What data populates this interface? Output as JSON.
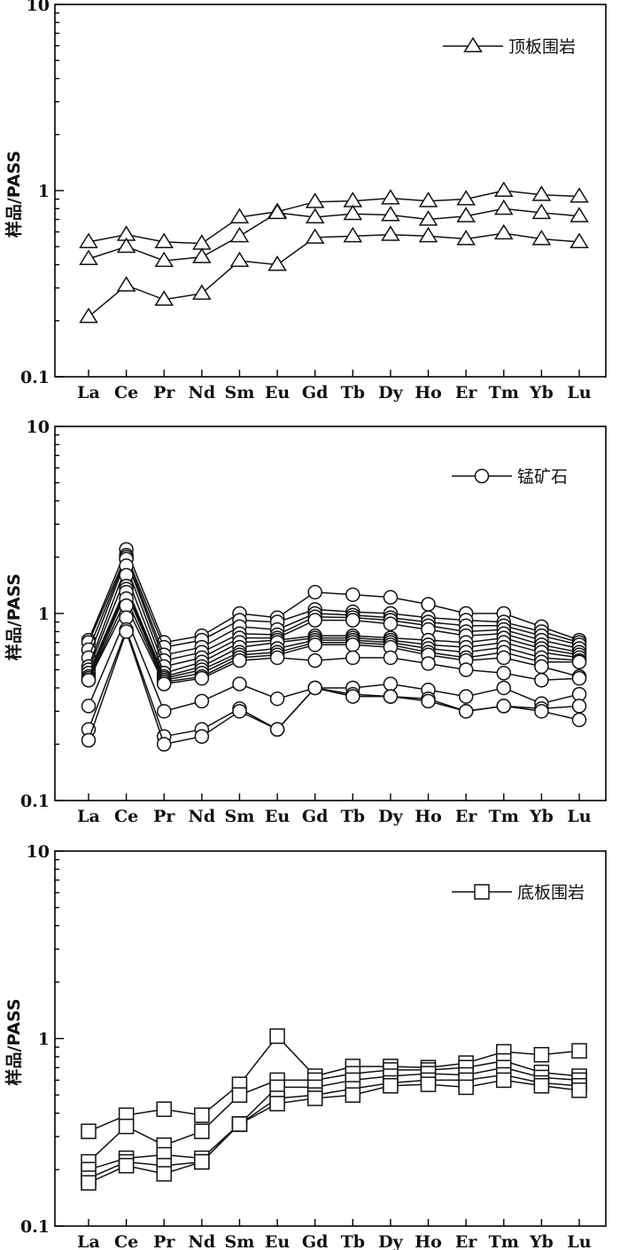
{
  "chart_data": [
    {
      "type": "line",
      "y_scale": "log",
      "ylim": [
        0.1,
        10
      ],
      "ylabel": "样品/PASS",
      "ytick_labels": [
        "0.1",
        "1",
        "10"
      ],
      "categories": [
        "La",
        "Ce",
        "Pr",
        "Nd",
        "Sm",
        "Eu",
        "Gd",
        "Tb",
        "Dy",
        "Ho",
        "Er",
        "Tm",
        "Yb",
        "Lu"
      ],
      "legend": {
        "label": "顶板围岩",
        "marker": "triangle",
        "position": "top-right"
      },
      "series": [
        {
          "values": [
            0.53,
            0.58,
            0.53,
            0.52,
            0.72,
            0.77,
            0.87,
            0.88,
            0.91,
            0.88,
            0.9,
            1.0,
            0.95,
            0.93
          ]
        },
        {
          "values": [
            0.43,
            0.5,
            0.42,
            0.44,
            0.57,
            0.76,
            0.72,
            0.75,
            0.74,
            0.7,
            0.73,
            0.8,
            0.76,
            0.73
          ]
        },
        {
          "values": [
            0.21,
            0.31,
            0.26,
            0.28,
            0.42,
            0.4,
            0.56,
            0.57,
            0.58,
            0.57,
            0.55,
            0.59,
            0.55,
            0.53
          ]
        }
      ]
    },
    {
      "type": "line",
      "y_scale": "log",
      "ylim": [
        0.1,
        10
      ],
      "ylabel": "样品/PASS",
      "ytick_labels": [
        "0.1",
        "1",
        "10"
      ],
      "categories": [
        "La",
        "Ce",
        "Pr",
        "Nd",
        "Sm",
        "Eu",
        "Gd",
        "Tb",
        "Dy",
        "Ho",
        "Er",
        "Tm",
        "Yb",
        "Lu"
      ],
      "legend": {
        "label": "锰矿石",
        "marker": "circle",
        "position": "top-right"
      },
      "series": [
        {
          "values": [
            0.72,
            2.2,
            0.7,
            0.76,
            1.0,
            0.95,
            1.3,
            1.26,
            1.22,
            1.12,
            1.0,
            1.0,
            0.85,
            0.72
          ]
        },
        {
          "values": [
            0.7,
            2.05,
            0.66,
            0.72,
            0.92,
            0.9,
            1.05,
            1.02,
            1.0,
            0.95,
            0.92,
            0.9,
            0.8,
            0.7
          ]
        },
        {
          "values": [
            0.64,
            2.0,
            0.6,
            0.66,
            0.85,
            0.82,
            1.0,
            0.98,
            0.95,
            0.9,
            0.86,
            0.86,
            0.76,
            0.68
          ]
        },
        {
          "values": [
            0.58,
            1.95,
            0.56,
            0.62,
            0.78,
            0.77,
            0.96,
            0.95,
            0.92,
            0.86,
            0.8,
            0.82,
            0.72,
            0.65
          ]
        },
        {
          "values": [
            0.52,
            1.8,
            0.52,
            0.58,
            0.74,
            0.74,
            0.92,
            0.92,
            0.88,
            0.82,
            0.76,
            0.78,
            0.68,
            0.62
          ]
        },
        {
          "values": [
            0.5,
            1.6,
            0.48,
            0.55,
            0.7,
            0.72,
            0.76,
            0.76,
            0.74,
            0.72,
            0.7,
            0.74,
            0.65,
            0.6
          ]
        },
        {
          "values": [
            0.48,
            1.4,
            0.46,
            0.52,
            0.66,
            0.7,
            0.74,
            0.74,
            0.72,
            0.68,
            0.66,
            0.7,
            0.62,
            0.58
          ]
        },
        {
          "values": [
            0.46,
            1.35,
            0.45,
            0.5,
            0.62,
            0.65,
            0.72,
            0.72,
            0.7,
            0.65,
            0.62,
            0.66,
            0.58,
            0.56
          ]
        },
        {
          "values": [
            0.45,
            1.3,
            0.44,
            0.48,
            0.6,
            0.62,
            0.7,
            0.7,
            0.68,
            0.62,
            0.58,
            0.62,
            0.55,
            0.55
          ]
        },
        {
          "values": [
            0.44,
            1.2,
            0.43,
            0.46,
            0.58,
            0.6,
            0.68,
            0.68,
            0.66,
            0.6,
            0.56,
            0.58,
            0.52,
            0.46
          ]
        },
        {
          "values": [
            0.44,
            1.1,
            0.42,
            0.45,
            0.56,
            0.58,
            0.56,
            0.58,
            0.58,
            0.54,
            0.5,
            0.48,
            0.44,
            0.45
          ]
        },
        {
          "values": [
            0.32,
            0.95,
            0.3,
            0.34,
            0.42,
            0.35,
            0.4,
            0.4,
            0.42,
            0.39,
            0.36,
            0.4,
            0.33,
            0.37
          ]
        },
        {
          "values": [
            0.24,
            0.82,
            0.22,
            0.24,
            0.31,
            0.24,
            0.4,
            0.37,
            0.36,
            0.35,
            0.3,
            0.32,
            0.31,
            0.32
          ]
        },
        {
          "values": [
            0.21,
            0.8,
            0.2,
            0.22,
            0.3,
            0.24,
            0.4,
            0.36,
            0.36,
            0.34,
            0.3,
            0.32,
            0.3,
            0.27
          ]
        }
      ]
    },
    {
      "type": "line",
      "y_scale": "log",
      "ylim": [
        0.1,
        10
      ],
      "ylabel": "样品/PASS",
      "ytick_labels": [
        "0.1",
        "1",
        "10"
      ],
      "categories": [
        "La",
        "Ce",
        "Pr",
        "Nd",
        "Sm",
        "Eu",
        "Gd",
        "Tb",
        "Dy",
        "Ho",
        "Er",
        "Tm",
        "Yb",
        "Lu"
      ],
      "legend": {
        "label": "底板围岩",
        "marker": "square",
        "position": "top-right"
      },
      "series": [
        {
          "values": [
            0.32,
            0.39,
            0.42,
            0.39,
            0.57,
            1.03,
            0.63,
            0.71,
            0.71,
            0.7,
            0.74,
            0.85,
            0.82,
            0.86
          ]
        },
        {
          "values": [
            0.22,
            0.34,
            0.27,
            0.32,
            0.5,
            0.6,
            0.6,
            0.65,
            0.68,
            0.68,
            0.7,
            0.76,
            0.66,
            0.63
          ]
        },
        {
          "values": [
            0.2,
            0.23,
            0.24,
            0.23,
            0.35,
            0.55,
            0.55,
            0.6,
            0.63,
            0.65,
            0.64,
            0.7,
            0.62,
            0.6
          ]
        },
        {
          "values": [
            0.18,
            0.22,
            0.21,
            0.22,
            0.35,
            0.48,
            0.5,
            0.54,
            0.58,
            0.6,
            0.6,
            0.64,
            0.58,
            0.56
          ]
        },
        {
          "values": [
            0.17,
            0.21,
            0.19,
            0.22,
            0.35,
            0.45,
            0.48,
            0.5,
            0.56,
            0.57,
            0.55,
            0.6,
            0.56,
            0.53
          ]
        }
      ]
    }
  ]
}
